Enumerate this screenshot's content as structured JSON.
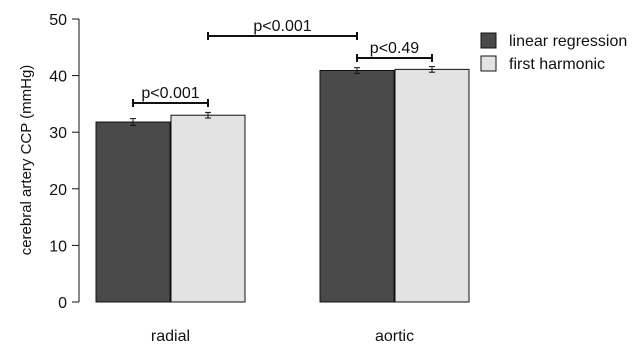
{
  "chart_data": {
    "type": "bar",
    "ylabel": "cerebral artery CCP (mmHg)",
    "ylim": [
      0,
      50
    ],
    "yticks": [
      0,
      10,
      20,
      30,
      40,
      50
    ],
    "categories": [
      "radial",
      "aortic"
    ],
    "series": [
      {
        "name": "linear regression",
        "color": "#4a4a4a",
        "values": [
          31.8,
          40.9
        ],
        "errors": [
          0.6,
          0.5
        ]
      },
      {
        "name": "first harmonic",
        "color": "#e3e3e3",
        "values": [
          33.0,
          41.1
        ],
        "errors": [
          0.5,
          0.5
        ]
      }
    ],
    "legend_position": "top-right",
    "annotations": [
      {
        "label": "p<0.001",
        "from": [
          "radial",
          "linear regression"
        ],
        "to": [
          "radial",
          "first harmonic"
        ]
      },
      {
        "label": "p<0.49",
        "from": [
          "aortic",
          "linear regression"
        ],
        "to": [
          "aortic",
          "first harmonic"
        ]
      },
      {
        "label": "p<0.001",
        "from": [
          "radial",
          "first harmonic"
        ],
        "to": [
          "aortic",
          "linear regression"
        ]
      }
    ]
  }
}
